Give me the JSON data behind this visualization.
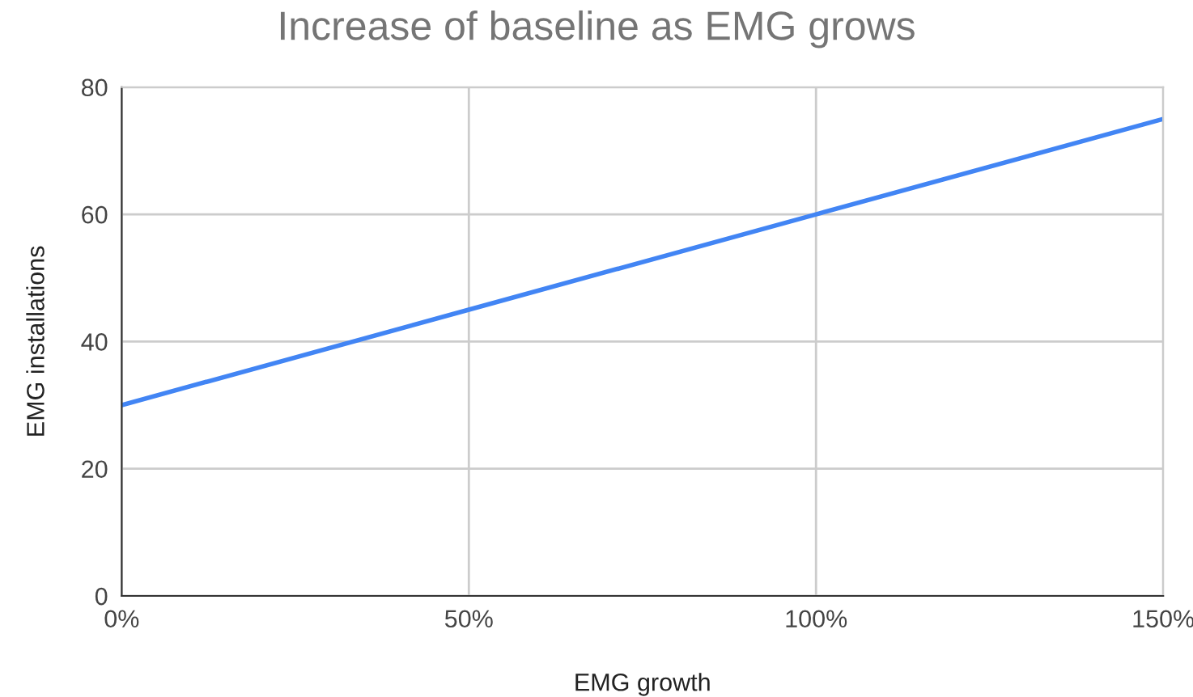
{
  "chart_data": {
    "type": "line",
    "title": "Increase of baseline as EMG grows",
    "xlabel": "EMG growth",
    "ylabel": "EMG installations",
    "x": [
      0,
      50,
      100,
      150
    ],
    "series": [
      {
        "color": "#4285f4",
        "values": [
          30,
          45,
          60,
          75
        ]
      }
    ],
    "xlim": [
      0,
      150
    ],
    "xticks": [
      {
        "value": 0,
        "label": "0%"
      },
      {
        "value": 50,
        "label": "50%"
      },
      {
        "value": 100,
        "label": "100%"
      },
      {
        "value": 150,
        "label": "150%"
      }
    ],
    "ylim": [
      0,
      80
    ],
    "yticks": [
      0,
      20,
      40,
      60,
      80
    ],
    "grid": true
  }
}
